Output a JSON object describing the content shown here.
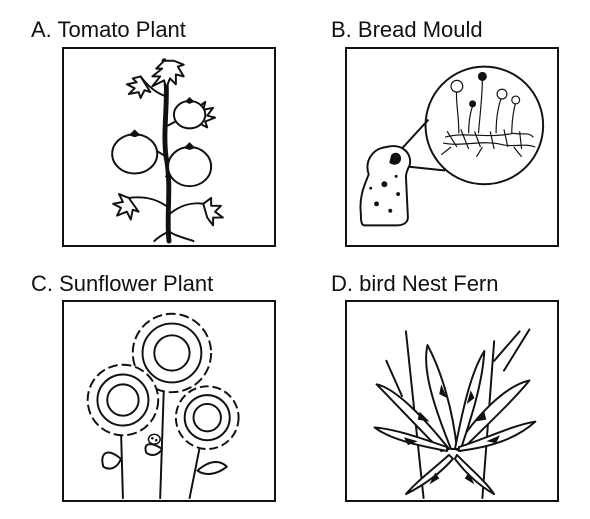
{
  "panels": [
    {
      "label": "A. Tomato Plant",
      "illustration": "tomato-plant"
    },
    {
      "label": "B. Bread Mould",
      "illustration": "bread-mould"
    },
    {
      "label": "C. Sunflower Plant",
      "illustration": "sunflower-plant"
    },
    {
      "label": "D. bird Nest Fern",
      "illustration": "bird-nest-fern"
    }
  ],
  "colors": {
    "ink": "#111111",
    "background": "#ffffff"
  }
}
